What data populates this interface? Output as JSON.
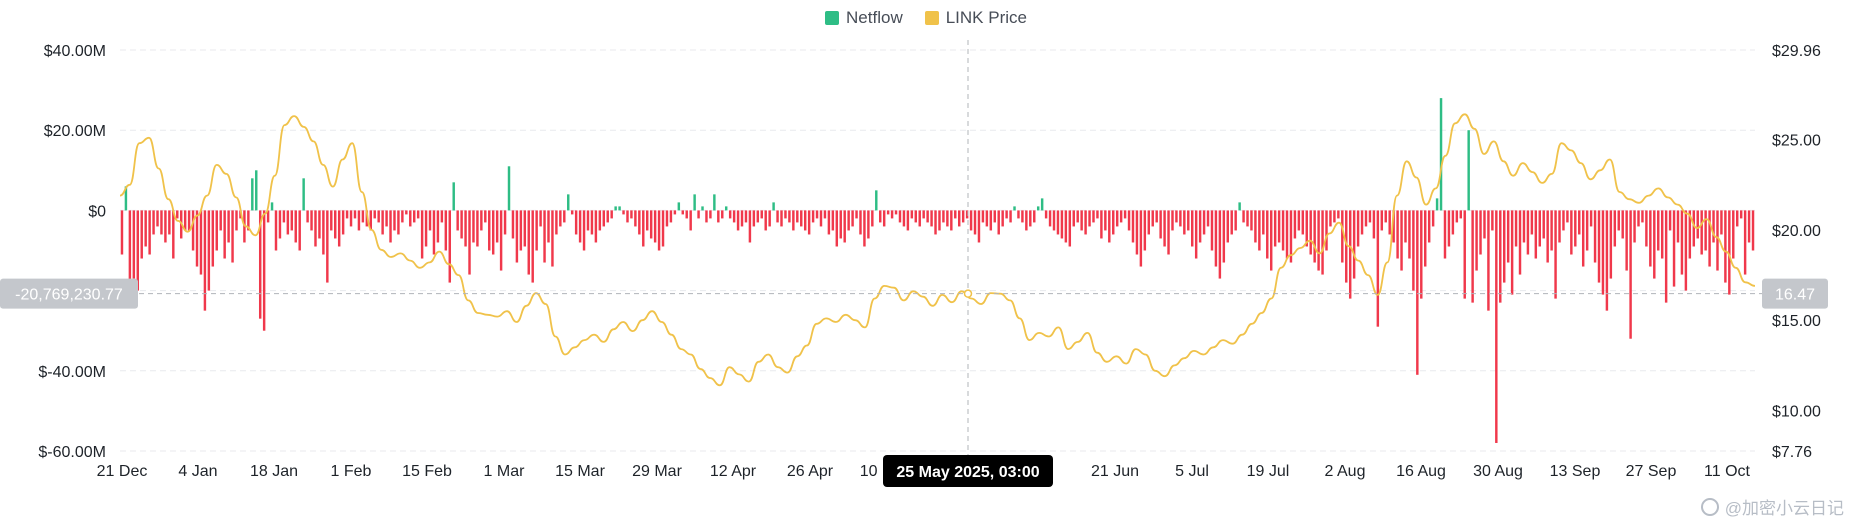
{
  "legend": {
    "netflow_label": "Netflow",
    "price_label": "LINK Price"
  },
  "colors": {
    "inflow": "#2ebd85",
    "outflow": "#f0384b",
    "price": "#f0c24a",
    "grid": "#e8eaed",
    "axis_text": "#1e2329",
    "tooltip_bg": "#000000",
    "crosshair_box": "#c4c7cc"
  },
  "crosshair": {
    "date_label": "25 May 2025, 03:00",
    "netflow_value_label": "-20,769,230.77",
    "price_value_label": "16.47",
    "netflow_value": -20769230.77,
    "price_value": 16.47
  },
  "watermark": {
    "text": "@加密小云日记"
  },
  "chart_data": {
    "type": "bar+line",
    "title": "",
    "xlabel": "",
    "y_left": {
      "ticks": [
        "$40.00M",
        "$20.00M",
        "$0",
        "$-40.00M",
        "$-60.00M"
      ],
      "tick_values": [
        40,
        20,
        0,
        -40,
        -60
      ],
      "range": [
        -60,
        40
      ],
      "unit": "M USD"
    },
    "y_right": {
      "ticks": [
        "$29.96",
        "$25.00",
        "$20.00",
        "$15.00",
        "$10.00",
        "$7.76"
      ],
      "tick_values": [
        29.96,
        25,
        20,
        15,
        10,
        7.76
      ],
      "range": [
        7.76,
        29.96
      ]
    },
    "x_ticks": [
      "21 Dec",
      "4 Jan",
      "18 Jan",
      "1 Feb",
      "15 Feb",
      "1 Mar",
      "15 Mar",
      "29 Mar",
      "12 Apr",
      "26 Apr",
      "10 May",
      "",
      "21 Jun",
      "5 Jul",
      "19 Jul",
      "2 Aug",
      "16 Aug",
      "30 Aug",
      "13 Sep",
      "27 Sep",
      "11 Oct"
    ],
    "grid": "horizontal dashed",
    "legend_position": "top-center",
    "series": [
      {
        "name": "Netflow",
        "type": "bar",
        "unit": "M USD",
        "values": [
          -11,
          6,
          -18,
          -17,
          -20,
          -12,
          -9,
          -11,
          -6,
          -4,
          -6,
          -8,
          -6,
          -12,
          -2,
          -7,
          -5,
          -5,
          -10,
          -14,
          -16,
          -25,
          -20,
          -14,
          -10,
          -5,
          -12,
          -8,
          -13,
          -5,
          -2,
          -8,
          -5,
          8,
          10,
          -27,
          -30,
          -3,
          2,
          -10,
          -7,
          -3,
          -6,
          -5,
          -8,
          -10,
          8,
          -3,
          -5,
          -9,
          -7,
          -11,
          -18,
          -5,
          -7,
          -9,
          -6,
          -2,
          -4,
          -2,
          -5,
          -3,
          -4,
          -5,
          -2,
          -3,
          -6,
          -4,
          -8,
          -5,
          -6,
          -3,
          -1,
          -4,
          -3,
          -2,
          -12,
          -9,
          -5,
          -11,
          -8,
          -3,
          -10,
          -18,
          7,
          -5,
          -7,
          -9,
          -16,
          -8,
          -9,
          -5,
          -3,
          -10,
          -11,
          -8,
          -15,
          -6,
          11,
          -7,
          -13,
          -10,
          -9,
          -16,
          -18,
          -10,
          -4,
          -13,
          -8,
          -14,
          -6,
          -4,
          -3,
          4,
          -1,
          -6,
          -8,
          -10,
          -5,
          -6,
          -8,
          -5,
          -4,
          -3,
          -2,
          1,
          1,
          -1,
          -3,
          -2,
          -4,
          -6,
          -9,
          -5,
          -7,
          -8,
          -10,
          -9,
          -4,
          -3,
          -1,
          2,
          -1,
          -2,
          -5,
          4,
          -2,
          1,
          -3,
          -2,
          4,
          -3,
          -2,
          1,
          -2,
          -3,
          -5,
          -4,
          -3,
          -8,
          -4,
          -3,
          -2,
          -5,
          -4,
          2,
          -3,
          -4,
          -2,
          -3,
          -5,
          -3,
          -4,
          -5,
          -6,
          -3,
          -2,
          -4,
          -2,
          -6,
          -5,
          -9,
          -7,
          -8,
          -5,
          -4,
          -2,
          -6,
          -9,
          -7,
          -4,
          5,
          -3,
          -4,
          -1,
          -2,
          -1,
          -3,
          -4,
          -5,
          -2,
          -3,
          -4,
          -2,
          -3,
          -4,
          -6,
          -5,
          -3,
          -4,
          -5,
          -2,
          -4,
          -3,
          -2,
          -5,
          -6,
          -8,
          -3,
          -4,
          -5,
          -3,
          -6,
          -4,
          -2,
          -3,
          1,
          -2,
          -3,
          -5,
          -4,
          -3,
          1,
          3,
          -2,
          -4,
          -5,
          -6,
          -7,
          -8,
          -9,
          -4,
          -3,
          -5,
          -6,
          -4,
          -3,
          -2,
          -7,
          -5,
          -8,
          -6,
          -4,
          -3,
          -2,
          -5,
          -8,
          -11,
          -14,
          -10,
          -6,
          -4,
          -3,
          -7,
          -9,
          -11,
          -5,
          -3,
          -4,
          -6,
          -5,
          -9,
          -12,
          -8,
          -6,
          -4,
          -10,
          -14,
          -17,
          -13,
          -8,
          -6,
          -5,
          2,
          -3,
          -4,
          -5,
          -8,
          -10,
          -6,
          -12,
          -15,
          -9,
          -8,
          -10,
          -12,
          -13,
          -7,
          -5,
          -6,
          -9,
          -11,
          -13,
          -15,
          -16,
          -10,
          -4,
          -3,
          -2,
          -13,
          -18,
          -22,
          -17,
          -9,
          -6,
          -4,
          -3,
          -7,
          -29,
          -5,
          -3,
          -6,
          -8,
          -12,
          -15,
          -8,
          -12,
          -20,
          -41,
          -22,
          -14,
          -8,
          -4,
          3,
          28,
          -12,
          -9,
          -6,
          -3,
          -2,
          -22,
          20,
          -23,
          -15,
          -11,
          -7,
          -25,
          -5,
          -58,
          -23,
          -18,
          -13,
          -21,
          -9,
          -16,
          -8,
          -11,
          -6,
          -12,
          -9,
          -7,
          -13,
          -10,
          -22,
          -8,
          -5,
          -3,
          -11,
          -9,
          -6,
          -14,
          -10,
          -4,
          -13,
          -18,
          -21,
          -25,
          -17,
          -9,
          -5,
          -7,
          -15,
          -32,
          -8,
          -4,
          -3,
          -9,
          -14,
          -17,
          -10,
          -12,
          -23,
          -5,
          -19,
          -8,
          -16,
          -20,
          -12,
          -9,
          -7,
          -11,
          -10,
          -14,
          -8,
          -15,
          -6,
          -18,
          -21,
          -12,
          -4,
          -2,
          -16,
          -8,
          -10
        ],
        "approximate": true
      },
      {
        "name": "LINK Price",
        "type": "line",
        "unit": "USD",
        "values": [
          21.9,
          22.5,
          24.8,
          25.1,
          23.4,
          21.7,
          20.5,
          19.9,
          20.8,
          21.9,
          23.6,
          23.1,
          21.8,
          20.2,
          19.7,
          20.9,
          23.0,
          25.8,
          26.3,
          25.7,
          24.9,
          23.6,
          22.4,
          23.9,
          24.8,
          22.1,
          20.0,
          18.9,
          18.5,
          18.7,
          18.3,
          17.9,
          18.2,
          18.8,
          18.1,
          17.5,
          16.1,
          15.4,
          15.3,
          15.2,
          15.5,
          14.9,
          15.8,
          16.5,
          15.9,
          14.1,
          13.1,
          13.5,
          13.9,
          14.2,
          13.8,
          14.5,
          14.9,
          14.4,
          15.0,
          15.5,
          14.9,
          14.2,
          13.4,
          13.1,
          12.3,
          11.8,
          11.4,
          12.4,
          12.0,
          11.6,
          12.7,
          13.1,
          12.4,
          12.1,
          13.0,
          13.6,
          14.8,
          15.1,
          14.9,
          15.3,
          15.0,
          14.6,
          16.2,
          16.9,
          16.8,
          16.1,
          16.6,
          16.3,
          15.8,
          16.4,
          16.0,
          16.6,
          16.2,
          15.9,
          16.5,
          16.47,
          16.1,
          15.1,
          13.9,
          14.3,
          14.1,
          14.6,
          13.4,
          13.8,
          14.3,
          13.2,
          12.7,
          13.0,
          12.6,
          13.4,
          13.1,
          12.2,
          11.9,
          12.5,
          12.9,
          13.3,
          13.1,
          13.5,
          13.9,
          13.7,
          14.2,
          14.8,
          15.4,
          16.2,
          17.9,
          18.6,
          19.0,
          19.4,
          18.7,
          19.8,
          20.4,
          19.1,
          18.3,
          17.5,
          16.4,
          18.2,
          21.9,
          23.8,
          22.9,
          21.4,
          22.3,
          24.1,
          25.9,
          26.4,
          25.6,
          24.2,
          24.9,
          23.8,
          23.0,
          23.7,
          23.2,
          22.6,
          23.1,
          24.8,
          24.4,
          23.7,
          22.8,
          23.3,
          23.9,
          22.1,
          21.7,
          21.5,
          21.9,
          22.3,
          21.8,
          21.4,
          20.9,
          20.1,
          20.6,
          19.6,
          18.8,
          17.9,
          17.1,
          16.9
        ]
      }
    ]
  }
}
